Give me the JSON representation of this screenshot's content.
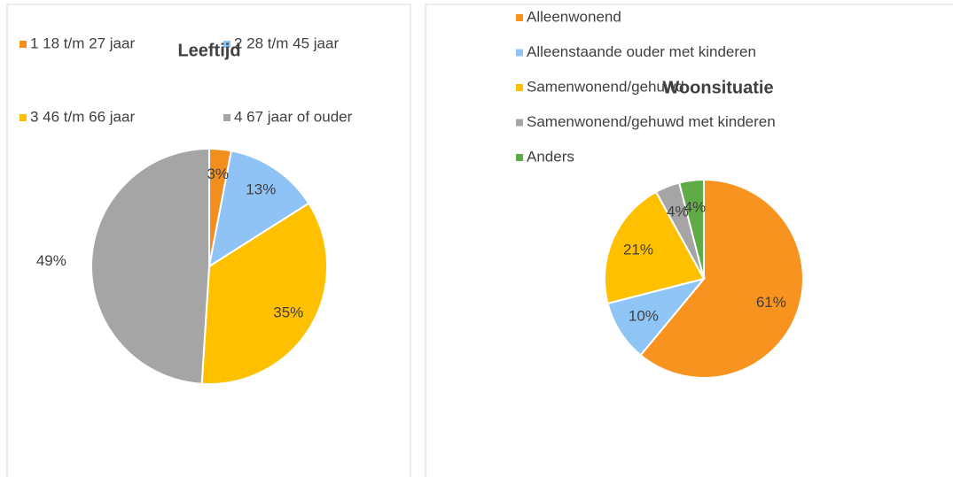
{
  "chart_data": [
    {
      "type": "pie",
      "title": "Leeftijd",
      "categories": [
        "1 18 t/m 27 jaar",
        "2 28 t/m 45 jaar",
        "3 46 t/m 66 jaar",
        "4 67 jaar of ouder"
      ],
      "values": [
        3,
        13,
        35,
        49
      ],
      "value_labels": [
        "3%",
        "13%",
        "35%",
        "49%"
      ],
      "colors": [
        "#f28e1e",
        "#8fc3f5",
        "#ffc000",
        "#a5a5a5"
      ],
      "legend": "top"
    },
    {
      "type": "pie",
      "title": "Woonsituatie",
      "categories": [
        "Alleenwonend",
        "Alleenstaande ouder met kinderen",
        "Samenwonend/gehuwd",
        "Samenwonend/gehuwd met kinderen",
        "Anders"
      ],
      "values": [
        61,
        10,
        21,
        4,
        4
      ],
      "value_labels": [
        "61%",
        "10%",
        "21%",
        "4%",
        "4%"
      ],
      "colors": [
        "#f7931e",
        "#8ec5f5",
        "#ffc000",
        "#a5a5a5",
        "#5fab46"
      ],
      "legend": "top"
    }
  ]
}
